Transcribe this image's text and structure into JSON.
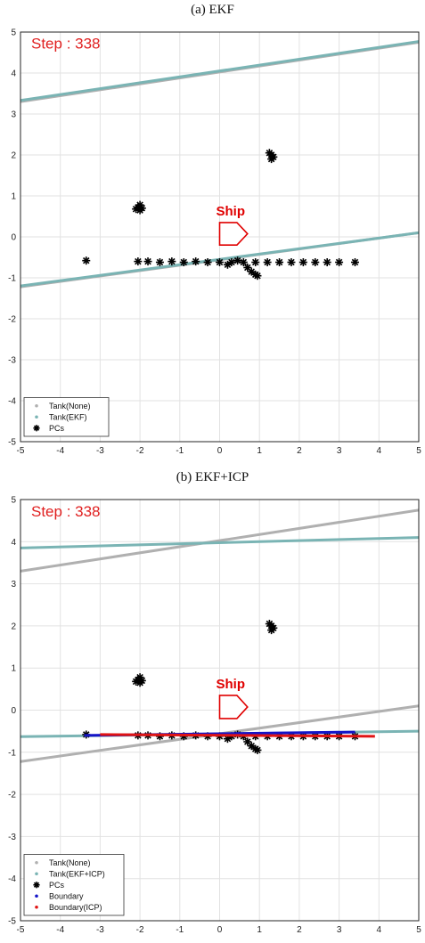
{
  "chart_data": [
    {
      "type": "scatter",
      "title": "(a) EKF",
      "step_label": "Step : 338",
      "ship_label": "Ship",
      "xlim": [
        -5,
        5
      ],
      "ylim": [
        -5,
        5
      ],
      "xticks": [
        -5,
        -4,
        -3,
        -2,
        -1,
        0,
        1,
        2,
        3,
        4,
        5
      ],
      "yticks": [
        -5,
        -4,
        -3,
        -2,
        -1,
        0,
        1,
        2,
        3,
        4,
        5
      ],
      "grid": true,
      "legend_position": "bottom-left",
      "legend": [
        "Tank(None)",
        "Tank(EKF)",
        "PCs"
      ],
      "ship_marker": {
        "x": [
          0.0,
          0.7
        ],
        "y": [
          -0.2,
          0.35
        ]
      },
      "tank_lines": [
        {
          "name": "Tank(None)",
          "color": "#b0b0b0",
          "segments": [
            {
              "x": [
                -5,
                5
              ],
              "y": [
                3.3,
                4.75
              ]
            },
            {
              "x": [
                -5,
                5
              ],
              "y": [
                -1.22,
                0.1
              ]
            }
          ]
        },
        {
          "name": "Tank(EKF)",
          "color": "#7ab4b4",
          "segments": [
            {
              "x": [
                -5,
                5
              ],
              "y": [
                3.33,
                4.77
              ]
            },
            {
              "x": [
                -5,
                5
              ],
              "y": [
                -1.2,
                0.1
              ]
            }
          ]
        }
      ],
      "pcs": {
        "name": "PCs",
        "color": "#000000",
        "x": [
          -3.35,
          -2.1,
          -2.05,
          -2.0,
          -1.95,
          -2.0,
          1.25,
          1.3,
          1.35,
          1.3,
          -2.05,
          -1.8,
          -1.5,
          -1.2,
          -0.9,
          -0.6,
          -0.3,
          0.0,
          0.3,
          0.6,
          0.9,
          1.2,
          1.5,
          1.8,
          2.1,
          2.4,
          2.7,
          3.0,
          3.4,
          0.7,
          0.8,
          0.9,
          0.95,
          0.2,
          0.45
        ],
        "y": [
          -0.58,
          0.68,
          0.72,
          0.78,
          0.7,
          0.65,
          2.05,
          2.0,
          1.95,
          1.9,
          -0.6,
          -0.6,
          -0.62,
          -0.6,
          -0.62,
          -0.6,
          -0.62,
          -0.62,
          -0.62,
          -0.62,
          -0.62,
          -0.62,
          -0.62,
          -0.62,
          -0.62,
          -0.62,
          -0.62,
          -0.62,
          -0.62,
          -0.75,
          -0.85,
          -0.92,
          -0.95,
          -0.68,
          -0.58
        ]
      }
    },
    {
      "type": "scatter",
      "title": "(b) EKF+ICP",
      "step_label": "Step : 338",
      "ship_label": "Ship",
      "xlim": [
        -5,
        5
      ],
      "ylim": [
        -5,
        5
      ],
      "xticks": [
        -5,
        -4,
        -3,
        -2,
        -1,
        0,
        1,
        2,
        3,
        4,
        5
      ],
      "yticks": [
        -5,
        -4,
        -3,
        -2,
        -1,
        0,
        1,
        2,
        3,
        4,
        5
      ],
      "grid": true,
      "legend_position": "bottom-left",
      "legend": [
        "Tank(None)",
        "Tank(EKF+ICP)",
        "PCs",
        "Boundary",
        "Boundary(ICP)"
      ],
      "ship_marker": {
        "x": [
          0.0,
          0.7
        ],
        "y": [
          -0.2,
          0.35
        ]
      },
      "tank_lines": [
        {
          "name": "Tank(None)",
          "color": "#b0b0b0",
          "segments": [
            {
              "x": [
                -5,
                5
              ],
              "y": [
                3.3,
                4.75
              ]
            },
            {
              "x": [
                -5,
                5
              ],
              "y": [
                -1.22,
                0.1
              ]
            }
          ]
        },
        {
          "name": "Tank(EKF+ICP)",
          "color": "#7ab4b4",
          "segments": [
            {
              "x": [
                -5,
                5
              ],
              "y": [
                3.85,
                4.1
              ]
            },
            {
              "x": [
                -5,
                5
              ],
              "y": [
                -0.63,
                -0.5
              ]
            }
          ]
        }
      ],
      "pcs": {
        "name": "PCs",
        "color": "#000000",
        "x": [
          -3.35,
          -2.1,
          -2.05,
          -2.0,
          -1.95,
          -2.0,
          1.25,
          1.3,
          1.35,
          1.3,
          -2.05,
          -1.8,
          -1.5,
          -1.2,
          -0.9,
          -0.6,
          -0.3,
          0.0,
          0.3,
          0.6,
          0.9,
          1.2,
          1.5,
          1.8,
          2.1,
          2.4,
          2.7,
          3.0,
          3.4,
          0.7,
          0.8,
          0.9,
          0.95,
          0.2,
          0.45
        ],
        "y": [
          -0.58,
          0.68,
          0.72,
          0.78,
          0.7,
          0.65,
          2.05,
          2.0,
          1.95,
          1.9,
          -0.6,
          -0.6,
          -0.62,
          -0.6,
          -0.62,
          -0.6,
          -0.62,
          -0.62,
          -0.62,
          -0.62,
          -0.62,
          -0.62,
          -0.62,
          -0.62,
          -0.62,
          -0.62,
          -0.62,
          -0.62,
          -0.62,
          -0.75,
          -0.85,
          -0.92,
          -0.95,
          -0.68,
          -0.58
        ]
      },
      "boundaries": [
        {
          "name": "Boundary",
          "color": "#1414c8",
          "x": [
            -3.4,
            3.4
          ],
          "y": [
            -0.6,
            -0.52
          ]
        },
        {
          "name": "Boundary(ICP)",
          "color": "#e01414",
          "x": [
            -3.0,
            3.9
          ],
          "y": [
            -0.58,
            -0.62
          ]
        }
      ]
    }
  ]
}
